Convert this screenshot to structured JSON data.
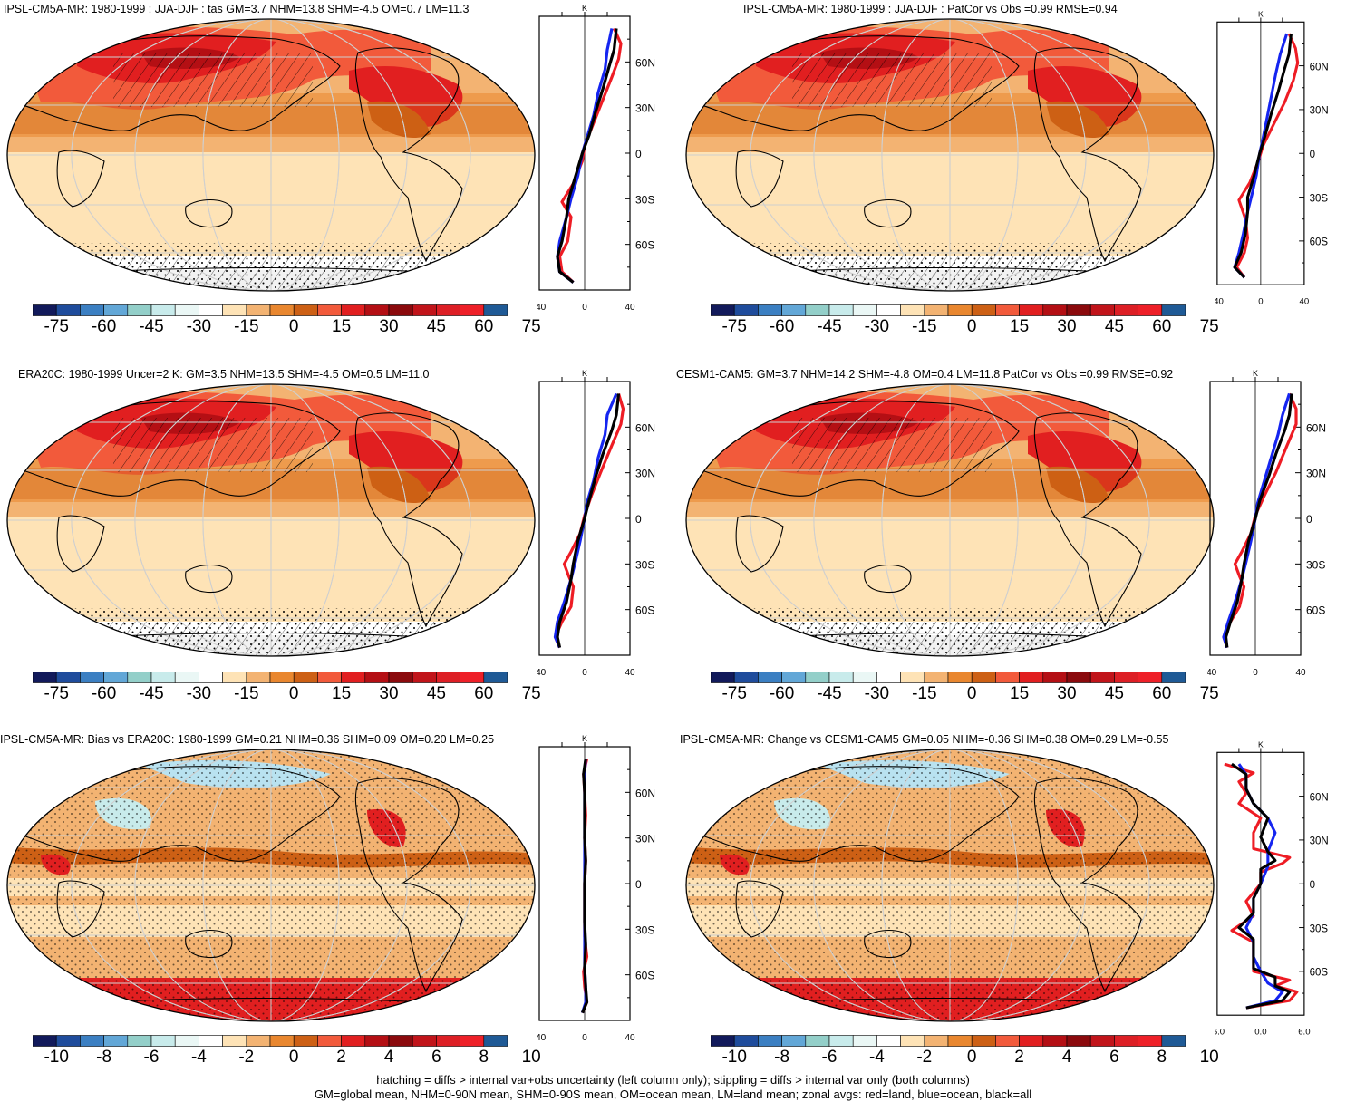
{
  "panels": [
    {
      "id": "p1",
      "title": "IPSL-CM5A-MR: 1980-1999 : JJA-DJF : tas GM=3.7 NHM=13.8 SHM=-4.5 OM=0.7 LM=11.3",
      "zonal_unit": "K",
      "lat_labels": [
        "60N",
        "30N",
        "0",
        "30S",
        "60S"
      ],
      "x_ticks": [
        "-40",
        "0",
        "40"
      ],
      "colorbar_labels": [
        "-75",
        "-60",
        "-45",
        "-30",
        "-15",
        "0",
        "15",
        "30",
        "45",
        "60",
        "75"
      ],
      "zonal_red": [
        [
          -10,
          -85
        ],
        [
          -20,
          -78
        ],
        [
          -22,
          -68
        ],
        [
          -15,
          -58
        ],
        [
          -12,
          -42
        ],
        [
          -20,
          -32
        ],
        [
          -10,
          -20
        ],
        [
          -2,
          -5
        ],
        [
          0,
          5
        ],
        [
          8,
          20
        ],
        [
          16,
          35
        ],
        [
          24,
          50
        ],
        [
          30,
          62
        ],
        [
          32,
          72
        ],
        [
          26,
          82
        ]
      ],
      "zonal_blue": [
        [
          -10,
          -85
        ],
        [
          -22,
          -78
        ],
        [
          -24,
          -68
        ],
        [
          -22,
          -58
        ],
        [
          -16,
          -42
        ],
        [
          -12,
          -30
        ],
        [
          -6,
          -15
        ],
        [
          -2,
          0
        ],
        [
          2,
          10
        ],
        [
          8,
          25
        ],
        [
          12,
          40
        ],
        [
          18,
          55
        ],
        [
          20,
          68
        ],
        [
          24,
          82
        ]
      ],
      "zonal_black": [
        [
          -10,
          -85
        ],
        [
          -22,
          -78
        ],
        [
          -24,
          -68
        ],
        [
          -20,
          -58
        ],
        [
          -16,
          -42
        ],
        [
          -14,
          -30
        ],
        [
          -8,
          -15
        ],
        [
          -2,
          0
        ],
        [
          4,
          12
        ],
        [
          10,
          28
        ],
        [
          16,
          42
        ],
        [
          22,
          58
        ],
        [
          26,
          68
        ],
        [
          28,
          82
        ]
      ]
    },
    {
      "id": "p2",
      "title": "IPSL-CM5A-MR: 1980-1999 : JJA-DJF : PatCor vs Obs =0.99 RMSE=0.94",
      "zonal_unit": "K",
      "lat_labels": [
        "60N",
        "30N",
        "0",
        "30S",
        "60S"
      ],
      "x_ticks": [
        "-40",
        "0",
        "40"
      ],
      "colorbar_labels": [
        "-75",
        "-60",
        "-45",
        "-30",
        "-15",
        "0",
        "15",
        "30",
        "45",
        "60",
        "75"
      ],
      "zonal_red": [
        [
          -15,
          -85
        ],
        [
          -22,
          -78
        ],
        [
          -15,
          -68
        ],
        [
          -12,
          -58
        ],
        [
          -14,
          -45
        ],
        [
          -20,
          -32
        ],
        [
          -10,
          -20
        ],
        [
          -2,
          -5
        ],
        [
          2,
          5
        ],
        [
          12,
          20
        ],
        [
          22,
          35
        ],
        [
          30,
          50
        ],
        [
          34,
          62
        ],
        [
          32,
          72
        ],
        [
          26,
          82
        ]
      ],
      "zonal_blue": [
        [
          -15,
          -85
        ],
        [
          -24,
          -78
        ],
        [
          -20,
          -68
        ],
        [
          -16,
          -55
        ],
        [
          -12,
          -40
        ],
        [
          -8,
          -28
        ],
        [
          -4,
          -15
        ],
        [
          -1,
          0
        ],
        [
          2,
          10
        ],
        [
          6,
          25
        ],
        [
          10,
          40
        ],
        [
          14,
          55
        ],
        [
          18,
          68
        ],
        [
          24,
          82
        ]
      ],
      "zonal_black": [
        [
          -15,
          -85
        ],
        [
          -24,
          -78
        ],
        [
          -18,
          -68
        ],
        [
          -14,
          -55
        ],
        [
          -12,
          -40
        ],
        [
          -12,
          -30
        ],
        [
          -6,
          -15
        ],
        [
          -1,
          0
        ],
        [
          4,
          12
        ],
        [
          10,
          28
        ],
        [
          16,
          42
        ],
        [
          22,
          58
        ],
        [
          26,
          68
        ],
        [
          28,
          82
        ]
      ]
    },
    {
      "id": "p3",
      "title": "ERA20C: 1980-1999 Uncer=2 K: GM=3.5 NHM=13.5 SHM=-4.5 OM=0.5 LM=11.0",
      "zonal_unit": "K",
      "lat_labels": [
        "60N",
        "30N",
        "0",
        "30S",
        "60S"
      ],
      "x_ticks": [
        "-40",
        "0",
        "40"
      ],
      "colorbar_labels": [
        "-75",
        "-60",
        "-45",
        "-30",
        "-15",
        "0",
        "15",
        "30",
        "45",
        "60",
        "75"
      ],
      "zonal_red": [
        [
          -22,
          -85
        ],
        [
          -26,
          -78
        ],
        [
          -20,
          -68
        ],
        [
          -12,
          -58
        ],
        [
          -10,
          -45
        ],
        [
          -14,
          -38
        ],
        [
          -18,
          -30
        ],
        [
          -12,
          -22
        ],
        [
          -4,
          -10
        ],
        [
          0,
          2
        ],
        [
          6,
          15
        ],
        [
          14,
          30
        ],
        [
          24,
          48
        ],
        [
          32,
          62
        ],
        [
          34,
          72
        ],
        [
          30,
          82
        ]
      ],
      "zonal_blue": [
        [
          -22,
          -85
        ],
        [
          -26,
          -78
        ],
        [
          -24,
          -68
        ],
        [
          -18,
          -55
        ],
        [
          -12,
          -40
        ],
        [
          -8,
          -28
        ],
        [
          -4,
          -15
        ],
        [
          0,
          0
        ],
        [
          2,
          10
        ],
        [
          8,
          25
        ],
        [
          12,
          40
        ],
        [
          18,
          55
        ],
        [
          20,
          68
        ],
        [
          28,
          82
        ]
      ],
      "zonal_black": [
        [
          -22,
          -85
        ],
        [
          -24,
          -78
        ],
        [
          -22,
          -68
        ],
        [
          -16,
          -55
        ],
        [
          -12,
          -40
        ],
        [
          -10,
          -30
        ],
        [
          -6,
          -15
        ],
        [
          0,
          0
        ],
        [
          4,
          12
        ],
        [
          10,
          28
        ],
        [
          16,
          42
        ],
        [
          24,
          58
        ],
        [
          28,
          68
        ],
        [
          30,
          82
        ]
      ]
    },
    {
      "id": "p4",
      "title": "CESM1-CAM5: GM=3.7 NHM=14.2 SHM=-4.8 OM=0.4 LM=11.8 PatCor vs Obs =0.99 RMSE=0.92",
      "zonal_unit": "K",
      "lat_labels": [
        "60N",
        "30N",
        "0",
        "30S",
        "60S"
      ],
      "x_ticks": [
        "-40",
        "0",
        "40"
      ],
      "colorbar_labels": [
        "-75",
        "-60",
        "-45",
        "-30",
        "-15",
        "0",
        "15",
        "30",
        "45",
        "60",
        "75"
      ],
      "zonal_red": [
        [
          -25,
          -85
        ],
        [
          -28,
          -78
        ],
        [
          -22,
          -68
        ],
        [
          -14,
          -58
        ],
        [
          -10,
          -45
        ],
        [
          -14,
          -38
        ],
        [
          -18,
          -30
        ],
        [
          -12,
          -22
        ],
        [
          -4,
          -10
        ],
        [
          0,
          2
        ],
        [
          8,
          15
        ],
        [
          18,
          30
        ],
        [
          28,
          48
        ],
        [
          36,
          62
        ],
        [
          36,
          72
        ],
        [
          30,
          82
        ]
      ],
      "zonal_blue": [
        [
          -25,
          -85
        ],
        [
          -28,
          -78
        ],
        [
          -24,
          -68
        ],
        [
          -18,
          -55
        ],
        [
          -12,
          -40
        ],
        [
          -8,
          -28
        ],
        [
          -4,
          -15
        ],
        [
          0,
          0
        ],
        [
          2,
          10
        ],
        [
          8,
          25
        ],
        [
          14,
          40
        ],
        [
          20,
          55
        ],
        [
          24,
          68
        ],
        [
          30,
          82
        ]
      ],
      "zonal_black": [
        [
          -25,
          -85
        ],
        [
          -26,
          -78
        ],
        [
          -22,
          -68
        ],
        [
          -16,
          -55
        ],
        [
          -12,
          -40
        ],
        [
          -10,
          -30
        ],
        [
          -6,
          -15
        ],
        [
          0,
          0
        ],
        [
          4,
          12
        ],
        [
          12,
          28
        ],
        [
          18,
          42
        ],
        [
          26,
          58
        ],
        [
          30,
          68
        ],
        [
          32,
          82
        ]
      ]
    },
    {
      "id": "p5",
      "title": "IPSL-CM5A-MR: Bias vs ERA20C: 1980-1999 GM=0.21 NHM=0.36 SHM=0.09 OM=0.20 LM=0.25",
      "zonal_unit": "K",
      "lat_labels": [
        "60N",
        "30N",
        "0",
        "30S",
        "60S"
      ],
      "x_ticks": [
        "-40",
        "0",
        "40"
      ],
      "colorbar_labels": [
        "-10",
        "-8",
        "-6",
        "-4",
        "-2",
        "0",
        "2",
        "4",
        "6",
        "8",
        "10"
      ],
      "zonal_red": [
        [
          -2,
          -85
        ],
        [
          2,
          -78
        ],
        [
          0,
          -68
        ],
        [
          -1,
          -58
        ],
        [
          2,
          -48
        ],
        [
          0,
          -35
        ],
        [
          0,
          -15
        ],
        [
          0,
          0
        ],
        [
          1,
          15
        ],
        [
          0,
          30
        ],
        [
          1,
          45
        ],
        [
          0,
          60
        ],
        [
          -1,
          72
        ],
        [
          2,
          82
        ]
      ],
      "zonal_blue": [
        [
          -2,
          -85
        ],
        [
          1,
          -78
        ],
        [
          1,
          -68
        ],
        [
          0,
          -55
        ],
        [
          0,
          -40
        ],
        [
          0,
          -25
        ],
        [
          0,
          -10
        ],
        [
          0,
          0
        ],
        [
          0,
          15
        ],
        [
          0,
          30
        ],
        [
          0,
          45
        ],
        [
          0,
          60
        ],
        [
          0,
          72
        ],
        [
          1,
          82
        ]
      ],
      "zonal_black": [
        [
          -2,
          -85
        ],
        [
          2,
          -78
        ],
        [
          1,
          -68
        ],
        [
          0,
          -55
        ],
        [
          1,
          -40
        ],
        [
          0,
          -25
        ],
        [
          0,
          -10
        ],
        [
          0,
          0
        ],
        [
          1,
          15
        ],
        [
          0,
          30
        ],
        [
          0,
          45
        ],
        [
          0,
          60
        ],
        [
          -1,
          72
        ],
        [
          1,
          82
        ]
      ]
    },
    {
      "id": "p6",
      "title": "IPSL-CM5A-MR: Change vs CESM1-CAM5 GM=0.05 NHM=-0.36 SHM=0.38 OM=0.29 LM=-0.55",
      "zonal_unit": "K",
      "lat_labels": [
        "60N",
        "30N",
        "0",
        "30S",
        "60S"
      ],
      "x_ticks": [
        "-6.0",
        "0.0",
        "6.0"
      ],
      "colorbar_labels": [
        "-10",
        "-8",
        "-6",
        "-4",
        "-2",
        "0",
        "2",
        "4",
        "6",
        "8",
        "10"
      ],
      "zonal_red": [
        [
          -2,
          -85
        ],
        [
          4,
          -80
        ],
        [
          5,
          -74
        ],
        [
          2,
          -70
        ],
        [
          4,
          -66
        ],
        [
          -1,
          -60
        ],
        [
          -1,
          -50
        ],
        [
          -1,
          -40
        ],
        [
          -4,
          -32
        ],
        [
          -1,
          -22
        ],
        [
          -2,
          -12
        ],
        [
          0,
          0
        ],
        [
          0,
          8
        ],
        [
          3,
          14
        ],
        [
          4,
          18
        ],
        [
          -1,
          24
        ],
        [
          -1,
          35
        ],
        [
          0,
          45
        ],
        [
          -3,
          55
        ],
        [
          -2,
          62
        ],
        [
          -3,
          70
        ],
        [
          -1,
          76
        ],
        [
          -5,
          82
        ]
      ],
      "zonal_blue": [
        [
          -2,
          -85
        ],
        [
          2,
          -80
        ],
        [
          3,
          -74
        ],
        [
          1,
          -68
        ],
        [
          0,
          -60
        ],
        [
          -1,
          -50
        ],
        [
          -1,
          -40
        ],
        [
          -2,
          -30
        ],
        [
          -1,
          -20
        ],
        [
          -1,
          -10
        ],
        [
          0,
          0
        ],
        [
          1,
          12
        ],
        [
          1,
          22
        ],
        [
          2,
          35
        ],
        [
          1,
          45
        ],
        [
          -1,
          55
        ],
        [
          -2,
          65
        ],
        [
          -2,
          75
        ],
        [
          -3,
          82
        ]
      ],
      "zonal_black": [
        [
          -2,
          -85
        ],
        [
          3,
          -80
        ],
        [
          4,
          -74
        ],
        [
          2,
          -70
        ],
        [
          2,
          -64
        ],
        [
          -1,
          -58
        ],
        [
          -1,
          -48
        ],
        [
          -1,
          -38
        ],
        [
          -3,
          -30
        ],
        [
          -1,
          -20
        ],
        [
          -1,
          -10
        ],
        [
          0,
          0
        ],
        [
          0,
          10
        ],
        [
          2,
          16
        ],
        [
          1,
          22
        ],
        [
          0,
          32
        ],
        [
          1,
          45
        ],
        [
          -1,
          55
        ],
        [
          -2,
          65
        ],
        [
          -2,
          75
        ],
        [
          -4,
          82
        ]
      ]
    }
  ],
  "colors": {
    "temp_scale": [
      "#121a5b",
      "#1f4c9c",
      "#3b7fc2",
      "#62a7d7",
      "#93cfc9",
      "#c8ebeb",
      "#eaf7f5",
      "#ffffff",
      "#fee3b6",
      "#f3b372",
      "#e9872f",
      "#cd6015",
      "#f25a3b",
      "#e11f20",
      "#b40f14",
      "#8b0a0d",
      "#c1141a",
      "#dd1f25",
      "#ee2028",
      "#1f5a96"
    ],
    "zonal_red": "#ee1c24",
    "zonal_blue": "#1525f0",
    "zonal_black": "#000000"
  },
  "footer": {
    "line1": "hatching = diffs > internal var+obs uncertainty (left column only); stippling = diffs > internal var only (both columns)",
    "line2": "GM=global mean, NHM=0-90N mean, SHM=0-90S mean, OM=ocean mean, LM=land mean; zonal avgs: red=land, blue=ocean, black=all"
  }
}
